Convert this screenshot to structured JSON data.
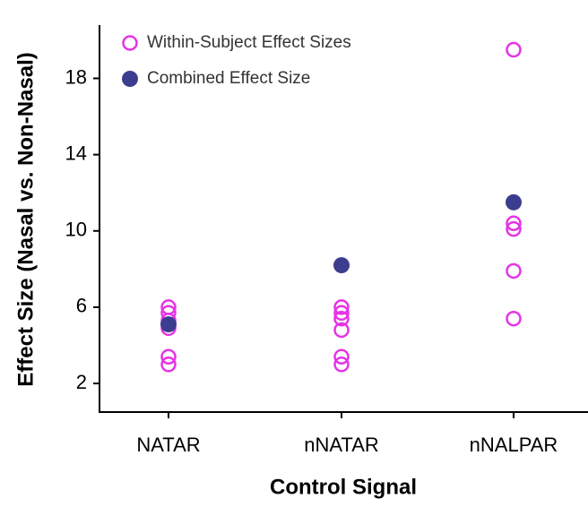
{
  "chart_data": {
    "type": "scatter",
    "x_label": "Control Signal",
    "y_label": "Effect Size (Nasal vs. Non-Nasal)",
    "categories": [
      "NATAR",
      "nNATAR",
      "nNALPAR"
    ],
    "ylim": [
      0.5,
      20.7
    ],
    "yticks": [
      2,
      6,
      10,
      14,
      18
    ],
    "legend": "upper left",
    "series": [
      {
        "name": "Within-Subject Effect Sizes",
        "color": "#e633e6",
        "marker": "open",
        "x": [
          "NATAR",
          "NATAR",
          "NATAR",
          "NATAR",
          "NATAR",
          "NATAR",
          "nNATAR",
          "nNATAR",
          "nNATAR",
          "nNATAR",
          "nNATAR",
          "nNATAR",
          "nNALPAR",
          "nNALPAR",
          "nNALPAR",
          "nNALPAR",
          "nNALPAR"
        ],
        "values": [
          6.0,
          5.7,
          5.3,
          4.9,
          3.4,
          3.0,
          6.0,
          5.7,
          5.4,
          4.8,
          3.4,
          3.0,
          19.5,
          10.4,
          10.1,
          7.9,
          5.4
        ]
      },
      {
        "name": "Combined Effect Size",
        "color": "#3d3d8f",
        "marker": "filled",
        "x": [
          "NATAR",
          "nNATAR",
          "nNALPAR"
        ],
        "values": [
          5.1,
          8.2,
          11.5
        ]
      }
    ]
  }
}
